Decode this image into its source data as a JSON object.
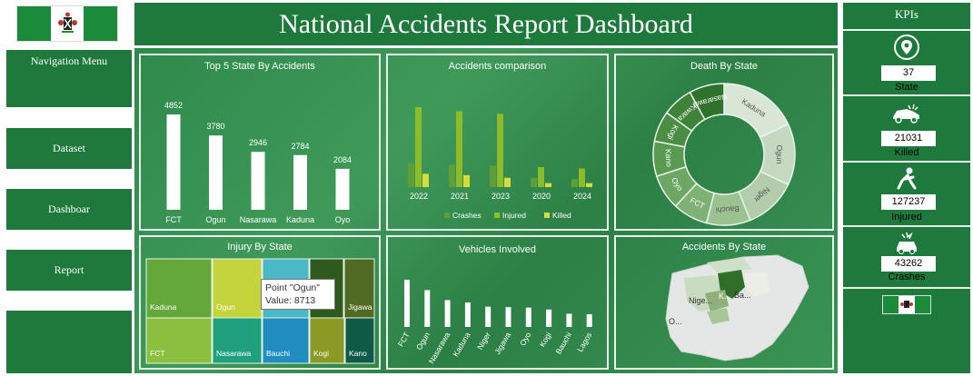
{
  "header": {
    "title": "National Accidents Report Dashboard"
  },
  "sidebar": {
    "items": [
      {
        "label": "Navigation Menu"
      },
      {
        "label": "Dataset"
      },
      {
        "label": "Dashboar"
      },
      {
        "label": "Report"
      }
    ]
  },
  "kpis": {
    "title": "KPIs",
    "items": [
      {
        "value": "37",
        "label": "State",
        "icon": "location-pin-icon"
      },
      {
        "value": "21031",
        "label": "Killed",
        "icon": "car-crash-icon"
      },
      {
        "value": "127237",
        "label": "Injured",
        "icon": "injured-person-icon"
      },
      {
        "value": "43262",
        "label": "Crashes",
        "icon": "crash-icon"
      }
    ]
  },
  "colors": {
    "brand_green": "#1e7a3c",
    "bar_white": "#ffffff",
    "crashes": "#5f9f3a",
    "injured": "#8cbc2a",
    "killed": "#d6dc3a"
  },
  "chart_data": [
    {
      "type": "bar",
      "title": "Top 5 State By Accidents",
      "categories": [
        "FCT",
        "Ogun",
        "Nasarawa",
        "Kaduna",
        "Oyo"
      ],
      "values": [
        4852,
        3780,
        2946,
        2784,
        2084
      ],
      "data_labels": [
        "4852",
        "3780",
        "2946",
        "2784",
        "2084"
      ]
    },
    {
      "type": "bar",
      "title": "Accidents comparison",
      "categories": [
        "2022",
        "2021",
        "2023",
        "2020",
        "2024"
      ],
      "series": [
        {
          "name": "Crashes",
          "values": [
            1800,
            1700,
            1600,
            700,
            600
          ]
        },
        {
          "name": "Injured",
          "values": [
            6000,
            5700,
            5500,
            1500,
            1400
          ]
        },
        {
          "name": "Killed",
          "values": [
            1000,
            900,
            700,
            300,
            300
          ]
        }
      ]
    },
    {
      "type": "pie",
      "title": "Death By State",
      "labels": [
        "Kaduna",
        "Ogun",
        "Niger",
        "Bauchi",
        "FCT",
        "Oyo",
        "Kano",
        "Kogi",
        "Kwara",
        "Nasarawa"
      ],
      "values": [
        18,
        14,
        12,
        10,
        8,
        8,
        8,
        7,
        7,
        8
      ]
    },
    {
      "type": "heatmap",
      "title": "Injury By State",
      "labels": [
        "Kaduna",
        "FCT",
        "Ogun",
        "Nasarawa",
        "Bauchi",
        "Jigawa",
        "Kogi",
        "Kano"
      ],
      "values": [
        10500,
        9800,
        8713,
        7200,
        6800,
        5200,
        4600,
        4300
      ],
      "tooltip": {
        "line1": "Point \"Ogun\"",
        "line2": "Value: 8713"
      }
    },
    {
      "type": "bar",
      "title": "Vehicles Involved",
      "categories": [
        "FCT",
        "Ogun",
        "Nasarawa",
        "Kaduna",
        "Niger",
        "Jigawa",
        "Oyo",
        "Kogi",
        "Bauchi",
        "Lagos"
      ],
      "values": [
        100,
        78,
        57,
        52,
        43,
        42,
        41,
        37,
        28,
        27
      ]
    },
    {
      "type": "map",
      "title": "Accidents By State",
      "map_labels": [
        "Nige...",
        "K...",
        "Ba...",
        "O..."
      ]
    }
  ]
}
